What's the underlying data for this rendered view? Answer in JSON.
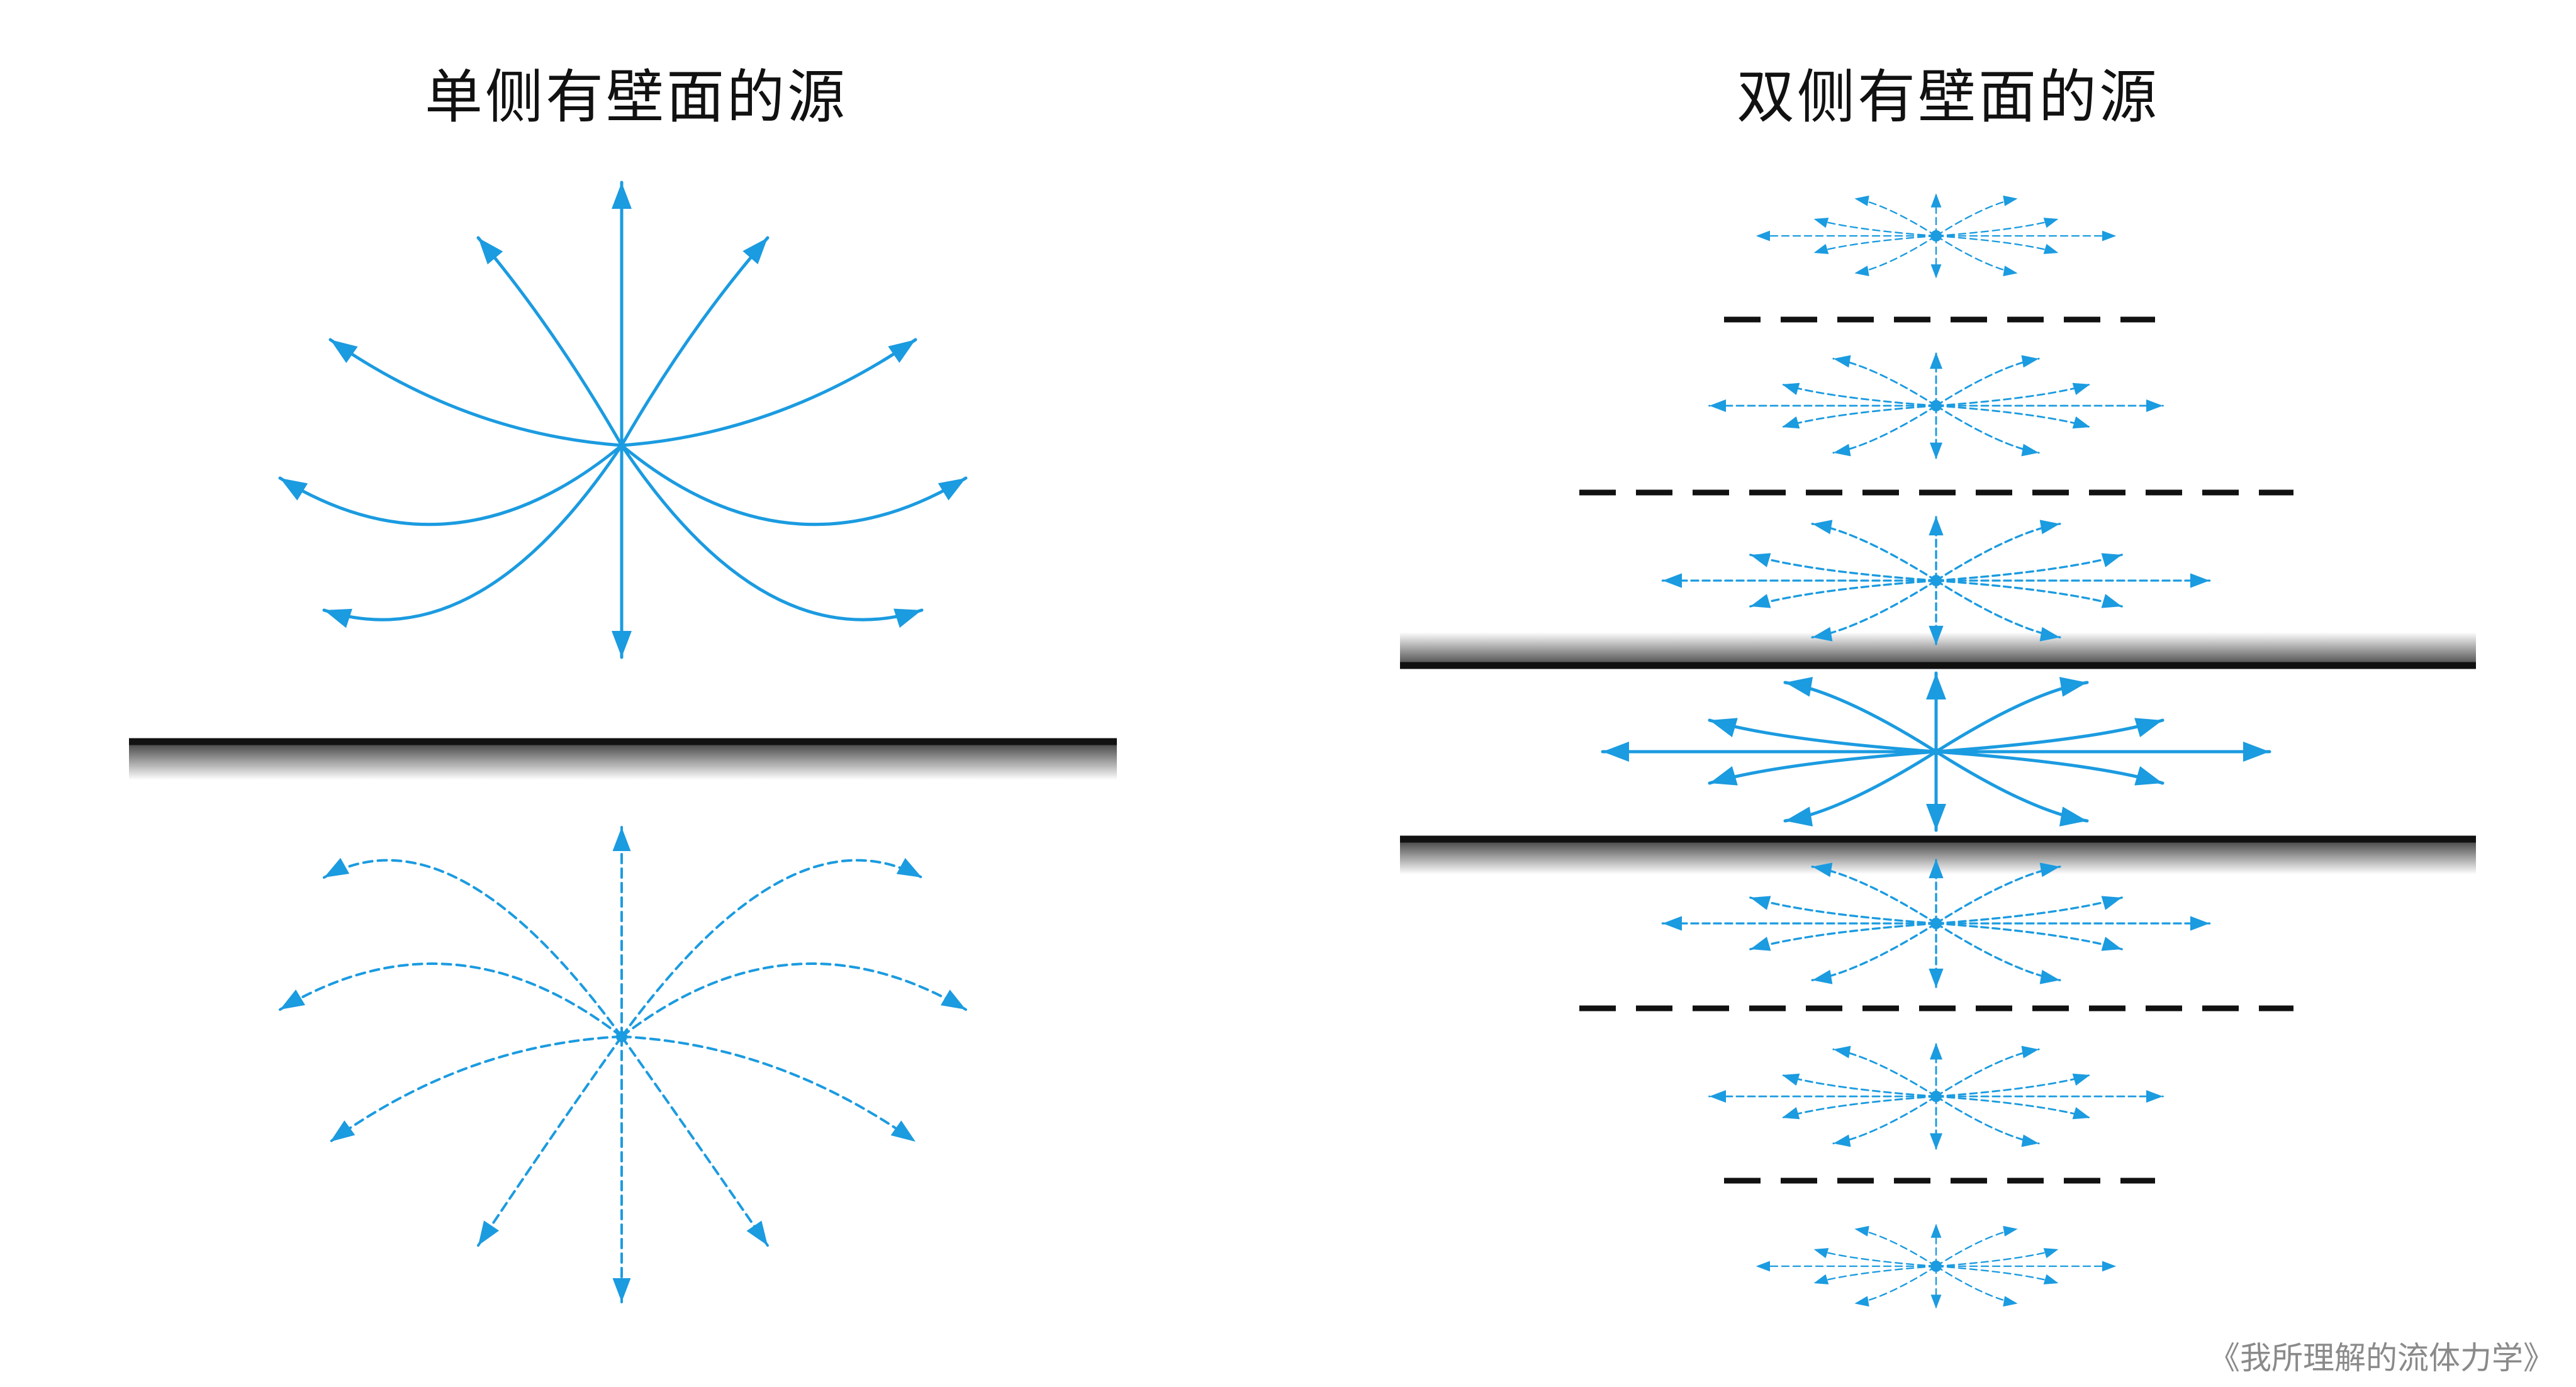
{
  "figure": {
    "left_title": "单侧有壁面的源",
    "right_title": "双侧有壁面的源",
    "footer": "《我所理解的流体力学》"
  },
  "colors": {
    "flow": "#1b9be0",
    "wall": "#111111",
    "text": "#111111",
    "footer": "#8a8a8a"
  }
}
